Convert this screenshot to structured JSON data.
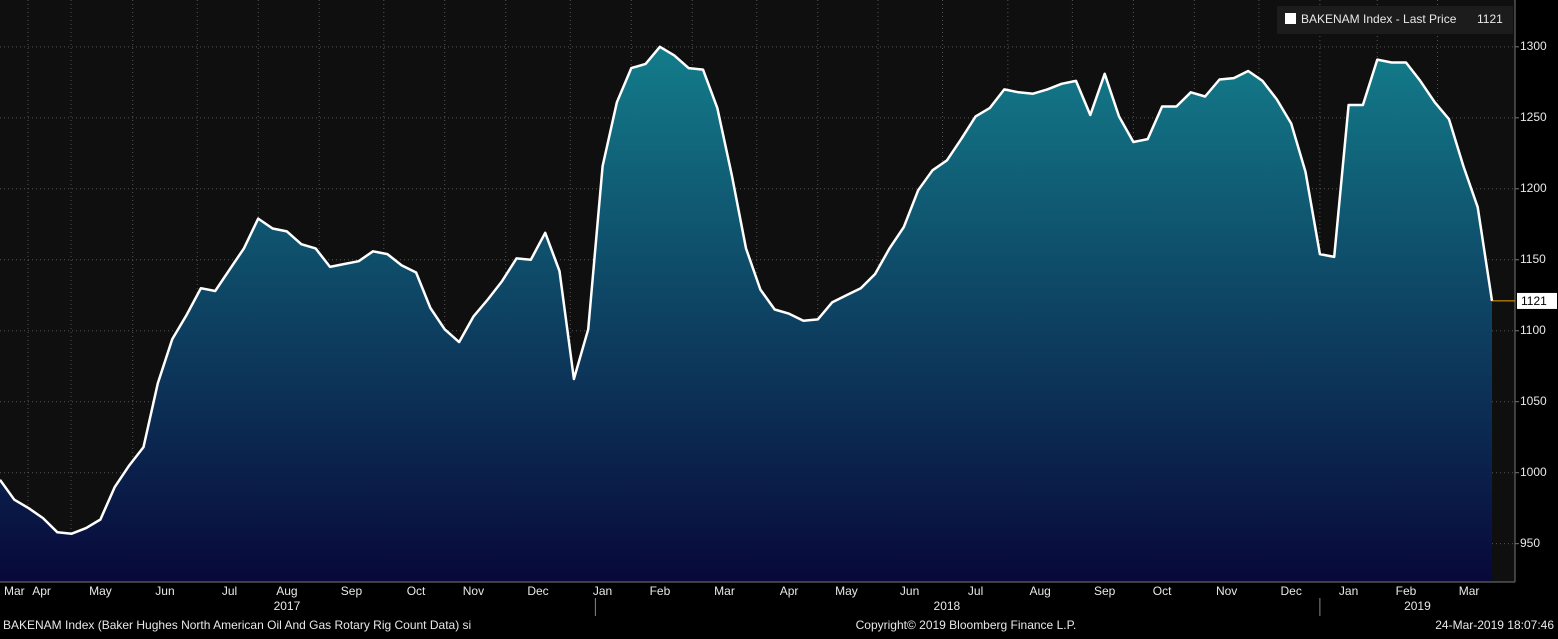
{
  "chart_data": {
    "type": "area",
    "legend": "BAKENAM Index - Last Price",
    "legend_position": "top-right",
    "footer_left": "BAKENAM Index (Baker Hughes North American Oil And Gas Rotary Rig Count Data) si",
    "footer_center": "Copyright© 2019 Bloomberg Finance L.P.",
    "footer_right": "24-Mar-2019 18:07:46",
    "series": [
      {
        "name": "BAKENAM Index",
        "color": "#ffffff",
        "values": [
          995,
          981,
          975,
          968,
          958,
          957,
          961,
          967,
          990,
          1005,
          1018,
          1063,
          1094,
          1111,
          1130,
          1128,
          1143,
          1158,
          1179,
          1172,
          1170,
          1161,
          1158,
          1145,
          1147,
          1149,
          1156,
          1154,
          1146,
          1141,
          1116,
          1101,
          1092,
          1110,
          1122,
          1135,
          1151,
          1150,
          1169,
          1142,
          1066,
          1101,
          1216,
          1261,
          1285,
          1288,
          1300,
          1294,
          1285,
          1284,
          1257,
          1210,
          1158,
          1129,
          1115,
          1112,
          1107,
          1108,
          1120,
          1125,
          1130,
          1140,
          1158,
          1173,
          1199,
          1213,
          1220,
          1235,
          1251,
          1257,
          1270,
          1268,
          1267,
          1270,
          1274,
          1276,
          1252,
          1281,
          1251,
          1233,
          1235,
          1258,
          1258,
          1268,
          1265,
          1277,
          1278,
          1283,
          1276,
          1263,
          1246,
          1212,
          1154,
          1152,
          1259,
          1259,
          1291,
          1289,
          1289,
          1276,
          1261,
          1249,
          1216,
          1187,
          1121
        ]
      }
    ],
    "area_gradient": [
      "#137c8a",
      "#08083a"
    ],
    "xlim": [
      0,
      105.6
    ],
    "xticks": [
      {
        "value": 1.0,
        "label": "Mar"
      },
      {
        "value": 2.9,
        "label": "Apr"
      },
      {
        "value": 7.0,
        "label": "May"
      },
      {
        "value": 11.5,
        "label": "Jun"
      },
      {
        "value": 16.0,
        "label": "Jul"
      },
      {
        "value": 20.0,
        "label": "Aug"
      },
      {
        "value": 24.5,
        "label": "Sep"
      },
      {
        "value": 29.0,
        "label": "Oct"
      },
      {
        "value": 33.0,
        "label": "Nov"
      },
      {
        "value": 37.5,
        "label": "Dec"
      },
      {
        "value": 42.0,
        "label": "Jan"
      },
      {
        "value": 46.0,
        "label": "Feb"
      },
      {
        "value": 50.5,
        "label": "Mar"
      },
      {
        "value": 55.0,
        "label": "Apr"
      },
      {
        "value": 59.0,
        "label": "May"
      },
      {
        "value": 63.4,
        "label": "Jun"
      },
      {
        "value": 68.0,
        "label": "Jul"
      },
      {
        "value": 72.5,
        "label": "Aug"
      },
      {
        "value": 77.0,
        "label": "Sep"
      },
      {
        "value": 81.0,
        "label": "Oct"
      },
      {
        "value": 85.5,
        "label": "Nov"
      },
      {
        "value": 90.0,
        "label": "Dec"
      },
      {
        "value": 94.0,
        "label": "Jan"
      },
      {
        "value": 98.0,
        "label": "Feb"
      },
      {
        "value": 102.4,
        "label": "Mar"
      }
    ],
    "year_labels": [
      {
        "value": 20.0,
        "label": "2017"
      },
      {
        "value": 66.0,
        "label": "2018"
      },
      {
        "value": 98.8,
        "label": "2019"
      }
    ],
    "ylim": [
      923,
      1333
    ],
    "yticks": [
      950,
      1000,
      1050,
      1100,
      1150,
      1200,
      1250,
      1300
    ],
    "grid": true
  }
}
